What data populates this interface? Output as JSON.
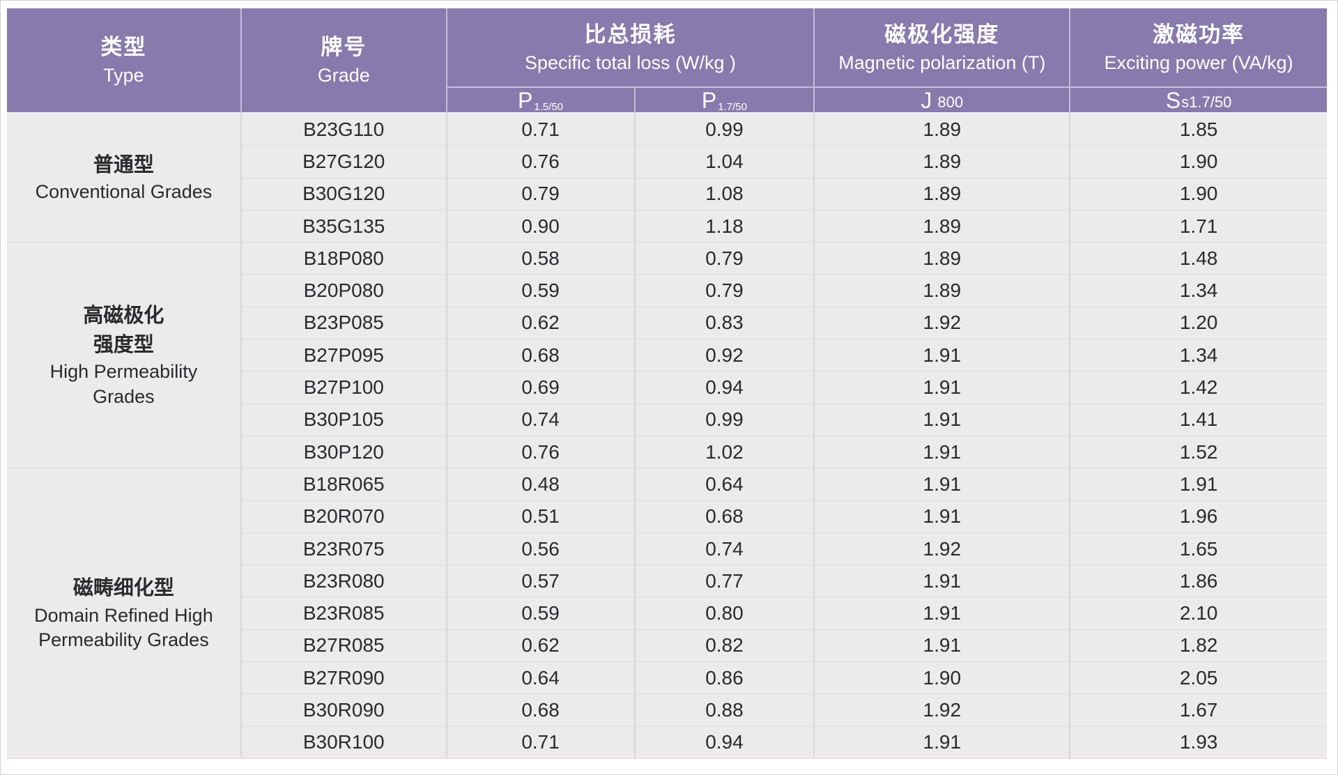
{
  "colors": {
    "header_bg": "#877AAC",
    "header_text": "#FFFFFF",
    "row_bg": "#ECEAEB",
    "data_text": "#2B292B",
    "vline": "#D9D6D8",
    "hline": "#DEDBDD",
    "header_divider": "#C6BFD9",
    "header_underline": "#F2F1F3",
    "frame_border": "#D2D0D1",
    "page_bg": "#FFFFFF"
  },
  "header": {
    "type": {
      "zh": "类型",
      "en": "Type"
    },
    "grade": {
      "zh": "牌号",
      "en": "Grade"
    },
    "specific_total_loss": {
      "zh": "比总损耗",
      "en": "Specific total loss (W/kg )"
    },
    "magnetic_polarization": {
      "zh": "磁极化强度",
      "en": "Magnetic polarization (T)"
    },
    "exciting_power": {
      "zh": "激磁功率",
      "en": "Exciting power (VA/kg)"
    },
    "sub": {
      "p1550": {
        "main": "P",
        "sub": "1.5/50"
      },
      "p1750": {
        "main": "P",
        "sub": "1.7/50"
      },
      "j800": {
        "main": "J",
        "small": "800"
      },
      "ss1750": {
        "main": "S",
        "small": "s1.7/50"
      }
    }
  },
  "groups": [
    {
      "type_label": {
        "zh_lines": [
          "普通型"
        ],
        "en_lines": [
          "Conventional Grades"
        ]
      },
      "rows": [
        {
          "grade": "B23G110",
          "p1550": "0.71",
          "p1750": "0.99",
          "j800": "1.89",
          "ss1750": "1.85"
        },
        {
          "grade": "B27G120",
          "p1550": "0.76",
          "p1750": "1.04",
          "j800": "1.89",
          "ss1750": "1.90"
        },
        {
          "grade": "B30G120",
          "p1550": "0.79",
          "p1750": "1.08",
          "j800": "1.89",
          "ss1750": "1.90"
        },
        {
          "grade": "B35G135",
          "p1550": "0.90",
          "p1750": "1.18",
          "j800": "1.89",
          "ss1750": "1.71"
        }
      ]
    },
    {
      "type_label": {
        "zh_lines": [
          "高磁极化",
          "强度型"
        ],
        "en_lines": [
          "High Permeability",
          "Grades"
        ]
      },
      "rows": [
        {
          "grade": "B18P080",
          "p1550": "0.58",
          "p1750": "0.79",
          "j800": "1.89",
          "ss1750": "1.48"
        },
        {
          "grade": "B20P080",
          "p1550": "0.59",
          "p1750": "0.79",
          "j800": "1.89",
          "ss1750": "1.34"
        },
        {
          "grade": "B23P085",
          "p1550": "0.62",
          "p1750": "0.83",
          "j800": "1.92",
          "ss1750": "1.20"
        },
        {
          "grade": "B27P095",
          "p1550": "0.68",
          "p1750": "0.92",
          "j800": "1.91",
          "ss1750": "1.34"
        },
        {
          "grade": "B27P100",
          "p1550": "0.69",
          "p1750": "0.94",
          "j800": "1.91",
          "ss1750": "1.42"
        },
        {
          "grade": "B30P105",
          "p1550": "0.74",
          "p1750": "0.99",
          "j800": "1.91",
          "ss1750": "1.41"
        },
        {
          "grade": "B30P120",
          "p1550": "0.76",
          "p1750": "1.02",
          "j800": "1.91",
          "ss1750": "1.52"
        }
      ]
    },
    {
      "type_label": {
        "zh_lines": [
          "磁畴细化型"
        ],
        "en_lines": [
          "Domain Refined High",
          "Permeability Grades"
        ]
      },
      "rows": [
        {
          "grade": "B18R065",
          "p1550": "0.48",
          "p1750": "0.64",
          "j800": "1.91",
          "ss1750": "1.91"
        },
        {
          "grade": "B20R070",
          "p1550": "0.51",
          "p1750": "0.68",
          "j800": "1.91",
          "ss1750": "1.96"
        },
        {
          "grade": "B23R075",
          "p1550": "0.56",
          "p1750": "0.74",
          "j800": "1.92",
          "ss1750": "1.65"
        },
        {
          "grade": "B23R080",
          "p1550": "0.57",
          "p1750": "0.77",
          "j800": "1.91",
          "ss1750": "1.86"
        },
        {
          "grade": "B23R085",
          "p1550": "0.59",
          "p1750": "0.80",
          "j800": "1.91",
          "ss1750": "2.10"
        },
        {
          "grade": "B27R085",
          "p1550": "0.62",
          "p1750": "0.82",
          "j800": "1.91",
          "ss1750": "1.82"
        },
        {
          "grade": "B27R090",
          "p1550": "0.64",
          "p1750": "0.86",
          "j800": "1.90",
          "ss1750": "2.05"
        },
        {
          "grade": "B30R090",
          "p1550": "0.68",
          "p1750": "0.88",
          "j800": "1.92",
          "ss1750": "1.67"
        },
        {
          "grade": "B30R100",
          "p1550": "0.71",
          "p1750": "0.94",
          "j800": "1.91",
          "ss1750": "1.93"
        }
      ]
    }
  ],
  "chart_data": {
    "type": "table",
    "title": "Grain-oriented electrical steel grade specifications",
    "columns": [
      "类型 Type",
      "牌号 Grade",
      "P1.5/50 (W/kg)",
      "P1.7/50 (W/kg)",
      "J800 (T)",
      "Ss1.7/50 (VA/kg)"
    ],
    "rows": [
      [
        "普通型 Conventional Grades",
        "B23G110",
        0.71,
        0.99,
        1.89,
        1.85
      ],
      [
        "普通型 Conventional Grades",
        "B27G120",
        0.76,
        1.04,
        1.89,
        1.9
      ],
      [
        "普通型 Conventional Grades",
        "B30G120",
        0.79,
        1.08,
        1.89,
        1.9
      ],
      [
        "普通型 Conventional Grades",
        "B35G135",
        0.9,
        1.18,
        1.89,
        1.71
      ],
      [
        "高磁极化强度型 High Permeability Grades",
        "B18P080",
        0.58,
        0.79,
        1.89,
        1.48
      ],
      [
        "高磁极化强度型 High Permeability Grades",
        "B20P080",
        0.59,
        0.79,
        1.89,
        1.34
      ],
      [
        "高磁极化强度型 High Permeability Grades",
        "B23P085",
        0.62,
        0.83,
        1.92,
        1.2
      ],
      [
        "高磁极化强度型 High Permeability Grades",
        "B27P095",
        0.68,
        0.92,
        1.91,
        1.34
      ],
      [
        "高磁极化强度型 High Permeability Grades",
        "B27P100",
        0.69,
        0.94,
        1.91,
        1.42
      ],
      [
        "高磁极化强度型 High Permeability Grades",
        "B30P105",
        0.74,
        0.99,
        1.91,
        1.41
      ],
      [
        "高磁极化强度型 High Permeability Grades",
        "B30P120",
        0.76,
        1.02,
        1.91,
        1.52
      ],
      [
        "磁畴细化型 Domain Refined High Permeability Grades",
        "B18R065",
        0.48,
        0.64,
        1.91,
        1.91
      ],
      [
        "磁畴细化型 Domain Refined High Permeability Grades",
        "B20R070",
        0.51,
        0.68,
        1.91,
        1.96
      ],
      [
        "磁畴细化型 Domain Refined High Permeability Grades",
        "B23R075",
        0.56,
        0.74,
        1.92,
        1.65
      ],
      [
        "磁畴细化型 Domain Refined High Permeability Grades",
        "B23R080",
        0.57,
        0.77,
        1.91,
        1.86
      ],
      [
        "磁畴细化型 Domain Refined High Permeability Grades",
        "B23R085",
        0.59,
        0.8,
        1.91,
        2.1
      ],
      [
        "磁畴细化型 Domain Refined High Permeability Grades",
        "B27R085",
        0.62,
        0.82,
        1.91,
        1.82
      ],
      [
        "磁畴细化型 Domain Refined High Permeability Grades",
        "B27R090",
        0.64,
        0.86,
        1.9,
        2.05
      ],
      [
        "磁畴细化型 Domain Refined High Permeability Grades",
        "B30R090",
        0.68,
        0.88,
        1.92,
        1.67
      ],
      [
        "磁畴细化型 Domain Refined High Permeability Grades",
        "B30R100",
        0.71,
        0.94,
        1.91,
        1.93
      ]
    ]
  }
}
